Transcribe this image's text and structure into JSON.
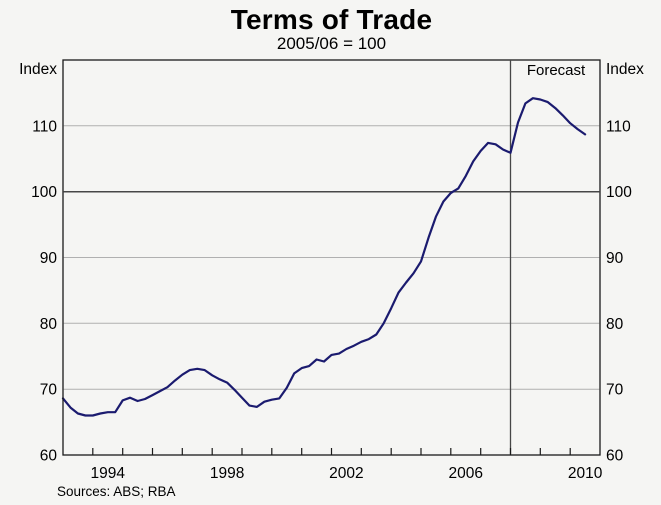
{
  "chart_data": {
    "type": "line",
    "title": "Terms of Trade",
    "subtitle": "2005/06 = 100",
    "unit_label_left": "Index",
    "unit_label_right": "Index",
    "forecast_label": "Forecast",
    "source_note": "Sources: ABS; RBA",
    "xlim": [
      1993.0,
      2011.0
    ],
    "ylim": [
      60,
      120
    ],
    "yticks": [
      60,
      70,
      80,
      90,
      100,
      110
    ],
    "reference_line_y": 100,
    "xtick_labels": [
      "1994",
      "1998",
      "2002",
      "2006",
      "2010"
    ],
    "xtick_label_years": [
      1994,
      1998,
      2002,
      2006,
      2010
    ],
    "forecast_start_x": 2008.0,
    "grid": "horizontal",
    "legend": "none",
    "series": [
      {
        "name": "terms-of-trade-index",
        "x": [
          1993.0,
          1993.25,
          1993.5,
          1993.75,
          1994.0,
          1994.25,
          1994.5,
          1994.75,
          1995.0,
          1995.25,
          1995.5,
          1995.75,
          1996.0,
          1996.25,
          1996.5,
          1996.75,
          1997.0,
          1997.25,
          1997.5,
          1997.75,
          1998.0,
          1998.25,
          1998.5,
          1998.75,
          1999.0,
          1999.25,
          1999.5,
          1999.75,
          2000.0,
          2000.25,
          2000.5,
          2000.75,
          2001.0,
          2001.25,
          2001.5,
          2001.75,
          2002.0,
          2002.25,
          2002.5,
          2002.75,
          2003.0,
          2003.25,
          2003.5,
          2003.75,
          2004.0,
          2004.25,
          2004.5,
          2004.75,
          2005.0,
          2005.25,
          2005.5,
          2005.75,
          2006.0,
          2006.25,
          2006.5,
          2006.75,
          2007.0,
          2007.25,
          2007.5,
          2007.75,
          2008.0,
          2008.25,
          2008.5,
          2008.75,
          2009.0,
          2009.25,
          2009.5,
          2009.75,
          2010.0,
          2010.25,
          2010.5
        ],
        "values": [
          68.6,
          67.2,
          66.3,
          66.0,
          66.0,
          66.3,
          66.5,
          66.5,
          68.3,
          68.7,
          68.2,
          68.5,
          69.1,
          69.7,
          70.3,
          71.3,
          72.2,
          72.9,
          73.1,
          72.9,
          72.1,
          71.5,
          71.0,
          69.9,
          68.7,
          67.5,
          67.3,
          68.1,
          68.4,
          68.6,
          70.2,
          72.4,
          73.2,
          73.5,
          74.5,
          74.2,
          75.2,
          75.4,
          76.1,
          76.6,
          77.2,
          77.6,
          78.3,
          80.0,
          82.3,
          84.7,
          86.2,
          87.6,
          89.4,
          93.0,
          96.2,
          98.5,
          99.8,
          100.5,
          102.4,
          104.6,
          106.2,
          107.4,
          107.2,
          106.4,
          105.9,
          110.5,
          113.4,
          114.2,
          114.0,
          113.6,
          112.7,
          111.6,
          110.4,
          109.5,
          108.7
        ]
      }
    ],
    "colors": {
      "line": "#1b1b6f",
      "grid": "#b0b0b0",
      "reference_line": "#474747",
      "forecast_divider": "#474747",
      "frame": "#1a1a1a",
      "background": "#f5f5f3",
      "text": "#000000"
    }
  }
}
